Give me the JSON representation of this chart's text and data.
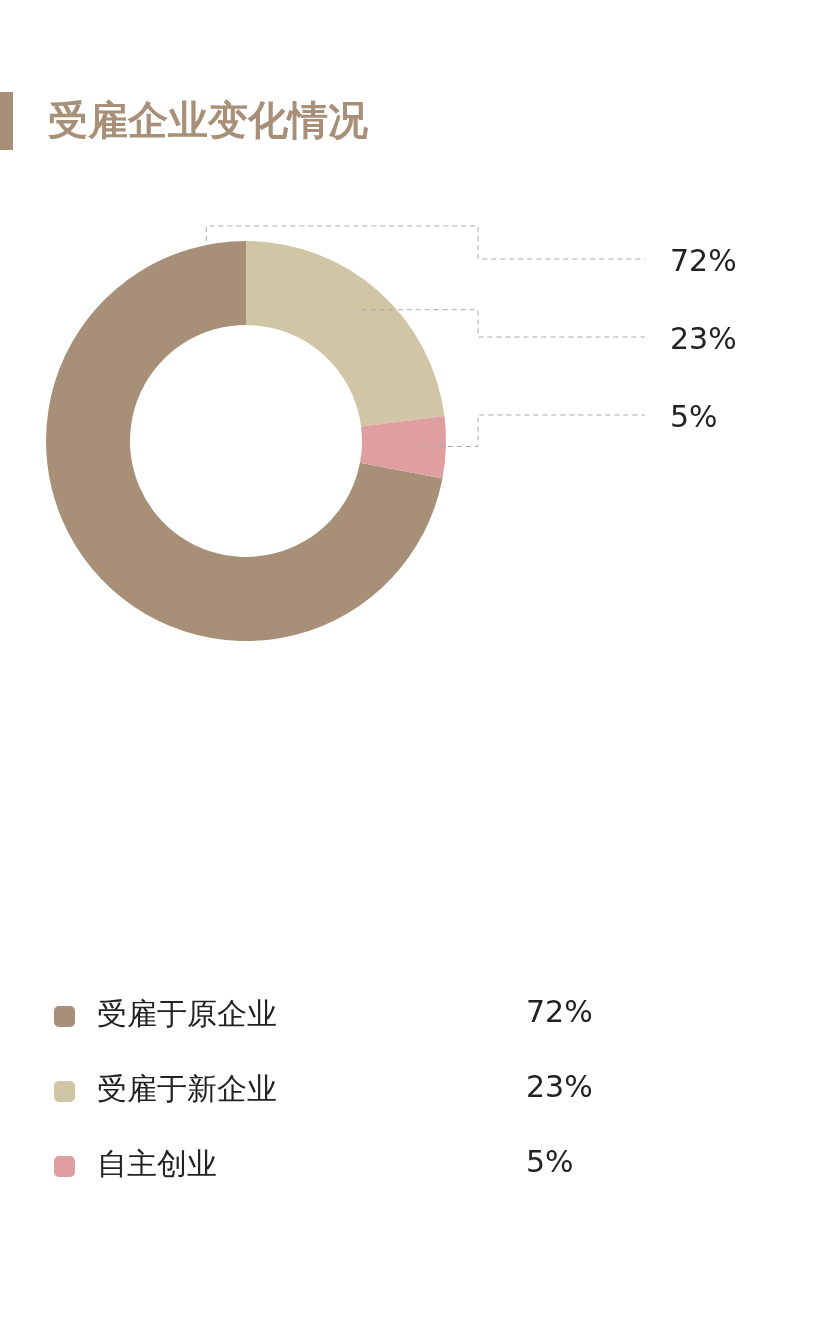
{
  "chart_data": {
    "type": "donut",
    "title": "受雇企业变化情况",
    "categories": [
      "受雇于原企业",
      "受雇于新企业",
      "自主创业"
    ],
    "values": [
      72,
      23,
      5
    ],
    "colors": [
      "#a78f78",
      "#d0c6a6",
      "#df9fa0"
    ],
    "value_labels": [
      "72%",
      "23%",
      "5%"
    ],
    "legend": "bottom"
  }
}
